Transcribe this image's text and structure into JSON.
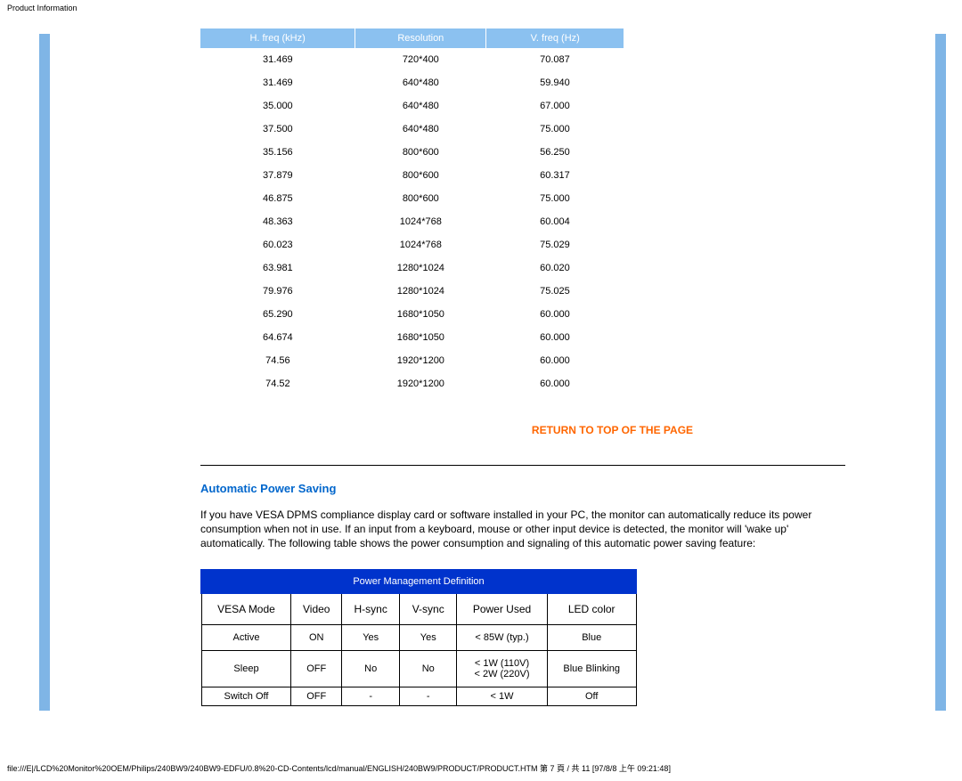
{
  "page": {
    "title": "Product Information",
    "footer": "file:///E|/LCD%20Monitor%20OEM/Philips/240BW9/240BW9-EDFU/0.8%20-CD-Contents/lcd/manual/ENGLISH/240BW9/PRODUCT/PRODUCT.HTM 第 7 頁 / 共 11  [97/8/8 上午 09:21:48]"
  },
  "colors": {
    "stripe": "#7fb5e6",
    "freq_header_bg": "#8bc1f0",
    "freq_header_text": "#ffffff",
    "return_link": "#ff6600",
    "section_heading": "#0066cc",
    "pm_title_bg": "#0033cc",
    "pm_title_text": "#ffffff",
    "border": "#000000",
    "background": "#ffffff"
  },
  "freq_table": {
    "headers": [
      "H. freq (kHz)",
      "Resolution",
      "V. freq (Hz)"
    ],
    "rows": [
      [
        "31.469",
        "720*400",
        "70.087"
      ],
      [
        "31.469",
        "640*480",
        "59.940"
      ],
      [
        "35.000",
        "640*480",
        "67.000"
      ],
      [
        "37.500",
        "640*480",
        "75.000"
      ],
      [
        "35.156",
        "800*600",
        "56.250"
      ],
      [
        "37.879",
        "800*600",
        "60.317"
      ],
      [
        "46.875",
        "800*600",
        "75.000"
      ],
      [
        "48.363",
        "1024*768",
        "60.004"
      ],
      [
        "60.023",
        "1024*768",
        "75.029"
      ],
      [
        "63.981",
        "1280*1024",
        "60.020"
      ],
      [
        "79.976",
        "1280*1024",
        "75.025"
      ],
      [
        "65.290",
        "1680*1050",
        "60.000"
      ],
      [
        "64.674",
        "1680*1050",
        "60.000"
      ],
      [
        "74.56",
        "1920*1200",
        "60.000"
      ],
      [
        "74.52",
        "1920*1200",
        "60.000"
      ]
    ]
  },
  "return_link": "RETURN TO TOP OF THE PAGE",
  "power_saving": {
    "heading": "Automatic Power Saving",
    "body": "If you have VESA DPMS compliance display card or software installed in your PC, the monitor can automatically reduce its power consumption when not in use. If an input from a keyboard, mouse or other input device is detected, the monitor will 'wake up' automatically. The following table shows the power consumption and signaling of this automatic power saving feature:"
  },
  "pm_table": {
    "title": "Power Management Definition",
    "headers": [
      "VESA Mode",
      "Video",
      "H-sync",
      "V-sync",
      "Power Used",
      "LED color"
    ],
    "rows": [
      [
        "Active",
        "ON",
        "Yes",
        "Yes",
        "< 85W (typ.)",
        "Blue"
      ],
      [
        "Sleep",
        "OFF",
        "No",
        "No",
        "< 1W (110V)\n< 2W (220V)",
        "Blue Blinking"
      ],
      [
        "Switch Off",
        "OFF",
        "-",
        "-",
        "< 1W",
        "Off"
      ]
    ]
  }
}
